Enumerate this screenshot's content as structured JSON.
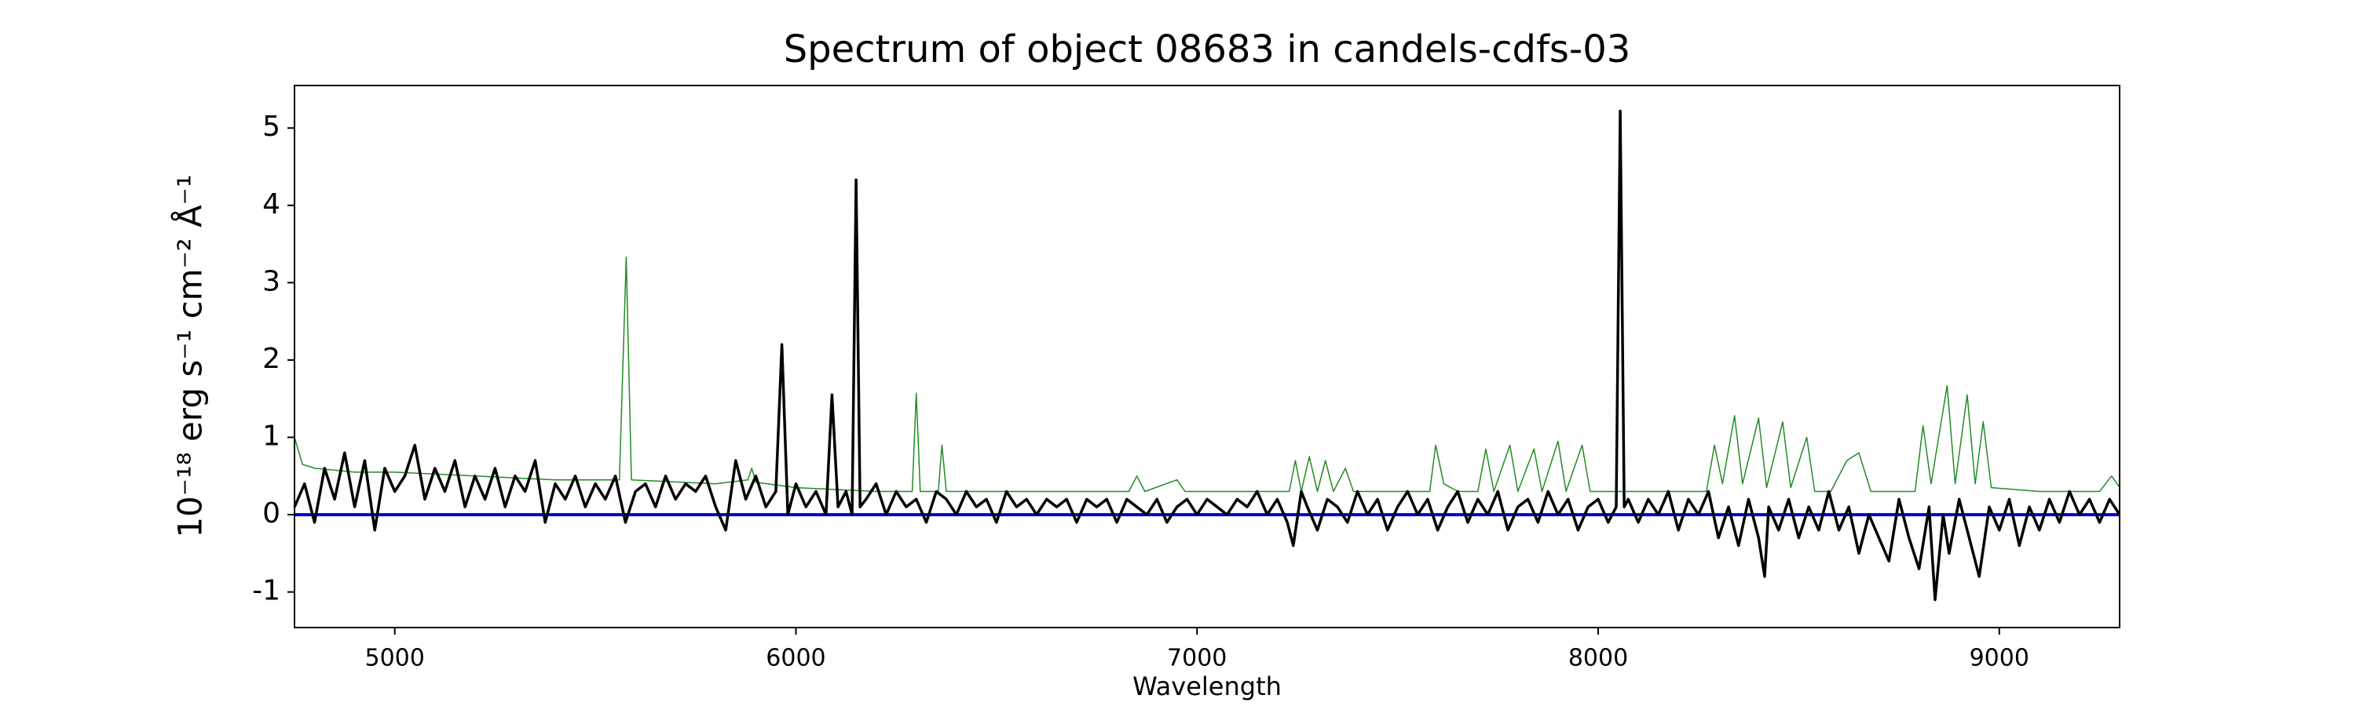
{
  "chart_data": {
    "type": "line",
    "title": "Spectrum of object 08683 in candels-cdfs-03",
    "xlabel": "Wavelength",
    "ylabel": "10⁻¹⁸ erg s⁻¹ cm⁻² Å⁻¹",
    "xlim": [
      4750,
      9300
    ],
    "ylim": [
      -1.46,
      5.55
    ],
    "xticks": [
      5000,
      6000,
      7000,
      8000,
      9000
    ],
    "yticks": [
      -1,
      0,
      1,
      2,
      3,
      4,
      5
    ],
    "grid": false,
    "series": [
      {
        "color": "#0000cc",
        "x": [
          4750,
          9300
        ],
        "values": [
          0,
          0
        ]
      },
      {
        "color": "#228b22",
        "x": [
          4750,
          4770,
          4800,
          4900,
          5000,
          5200,
          5400,
          5560,
          5577,
          5590,
          5800,
          5880,
          5890,
          5900,
          6000,
          6200,
          6290,
          6300,
          6310,
          6355,
          6364,
          6375,
          6500,
          6700,
          6830,
          6850,
          6870,
          6950,
          6970,
          7100,
          7230,
          7245,
          7260,
          7280,
          7300,
          7320,
          7340,
          7370,
          7390,
          7500,
          7580,
          7595,
          7615,
          7650,
          7700,
          7720,
          7740,
          7780,
          7800,
          7840,
          7860,
          7900,
          7920,
          7960,
          7980,
          8100,
          8270,
          8290,
          8310,
          8340,
          8360,
          8400,
          8420,
          8460,
          8480,
          8520,
          8540,
          8580,
          8620,
          8650,
          8680,
          8790,
          8810,
          8830,
          8870,
          8890,
          8920,
          8940,
          8960,
          8980,
          9100,
          9250,
          9280,
          9300
        ],
        "values": [
          1.0,
          0.65,
          0.6,
          0.55,
          0.55,
          0.5,
          0.45,
          0.45,
          3.33,
          0.45,
          0.4,
          0.45,
          0.6,
          0.42,
          0.35,
          0.3,
          0.3,
          1.57,
          0.3,
          0.3,
          0.9,
          0.3,
          0.3,
          0.3,
          0.3,
          0.5,
          0.3,
          0.45,
          0.3,
          0.3,
          0.3,
          0.7,
          0.3,
          0.75,
          0.3,
          0.7,
          0.3,
          0.6,
          0.3,
          0.3,
          0.3,
          0.9,
          0.4,
          0.3,
          0.3,
          0.85,
          0.3,
          0.9,
          0.3,
          0.85,
          0.3,
          0.95,
          0.3,
          0.9,
          0.3,
          0.3,
          0.3,
          0.9,
          0.4,
          1.28,
          0.4,
          1.25,
          0.35,
          1.2,
          0.35,
          1.0,
          0.3,
          0.3,
          0.7,
          0.8,
          0.3,
          0.3,
          1.15,
          0.4,
          1.67,
          0.4,
          1.55,
          0.4,
          1.2,
          0.35,
          0.3,
          0.3,
          0.5,
          0.35
        ]
      },
      {
        "color": "#000000",
        "x": [
          4750,
          4775,
          4800,
          4825,
          4850,
          4875,
          4900,
          4925,
          4950,
          4975,
          5000,
          5025,
          5050,
          5075,
          5100,
          5125,
          5150,
          5175,
          5200,
          5225,
          5250,
          5275,
          5300,
          5325,
          5350,
          5375,
          5400,
          5425,
          5450,
          5475,
          5500,
          5525,
          5550,
          5575,
          5600,
          5625,
          5650,
          5675,
          5700,
          5725,
          5750,
          5775,
          5800,
          5825,
          5850,
          5875,
          5900,
          5925,
          5950,
          5965,
          5980,
          6000,
          6025,
          6050,
          6075,
          6090,
          6105,
          6125,
          6140,
          6150,
          6160,
          6175,
          6200,
          6225,
          6250,
          6275,
          6300,
          6325,
          6350,
          6375,
          6400,
          6425,
          6450,
          6475,
          6500,
          6525,
          6550,
          6575,
          6600,
          6625,
          6650,
          6675,
          6700,
          6725,
          6750,
          6775,
          6800,
          6825,
          6850,
          6875,
          6900,
          6925,
          6950,
          6975,
          7000,
          7025,
          7050,
          7075,
          7100,
          7125,
          7150,
          7175,
          7200,
          7225,
          7240,
          7260,
          7275,
          7300,
          7325,
          7350,
          7375,
          7400,
          7425,
          7450,
          7475,
          7500,
          7525,
          7550,
          7575,
          7600,
          7625,
          7650,
          7675,
          7700,
          7725,
          7750,
          7775,
          7800,
          7825,
          7850,
          7875,
          7900,
          7925,
          7950,
          7975,
          8000,
          8025,
          8045,
          8055,
          8065,
          8075,
          8100,
          8125,
          8150,
          8175,
          8200,
          8225,
          8250,
          8275,
          8300,
          8325,
          8350,
          8375,
          8400,
          8415,
          8425,
          8450,
          8475,
          8500,
          8525,
          8550,
          8575,
          8600,
          8625,
          8650,
          8675,
          8700,
          8725,
          8750,
          8775,
          8800,
          8825,
          8840,
          8860,
          8875,
          8900,
          8925,
          8950,
          8975,
          9000,
          9025,
          9050,
          9075,
          9100,
          9125,
          9150,
          9175,
          9200,
          9225,
          9250,
          9275,
          9300
        ],
        "values": [
          0.1,
          0.4,
          -0.1,
          0.6,
          0.2,
          0.8,
          0.1,
          0.7,
          -0.2,
          0.6,
          0.3,
          0.5,
          0.9,
          0.2,
          0.6,
          0.3,
          0.7,
          0.1,
          0.5,
          0.2,
          0.6,
          0.1,
          0.5,
          0.3,
          0.7,
          -0.1,
          0.4,
          0.2,
          0.5,
          0.1,
          0.4,
          0.2,
          0.5,
          -0.1,
          0.3,
          0.4,
          0.1,
          0.5,
          0.2,
          0.4,
          0.3,
          0.5,
          0.1,
          -0.2,
          0.7,
          0.2,
          0.5,
          0.1,
          0.3,
          2.2,
          0.0,
          0.4,
          0.1,
          0.3,
          0.0,
          1.55,
          0.1,
          0.3,
          0.0,
          4.33,
          0.1,
          0.2,
          0.4,
          0.0,
          0.3,
          0.1,
          0.2,
          -0.1,
          0.3,
          0.2,
          0.0,
          0.3,
          0.1,
          0.2,
          -0.1,
          0.3,
          0.1,
          0.2,
          0.0,
          0.2,
          0.1,
          0.2,
          -0.1,
          0.2,
          0.1,
          0.2,
          -0.1,
          0.2,
          0.1,
          0.0,
          0.2,
          -0.1,
          0.1,
          0.2,
          0.0,
          0.2,
          0.1,
          0.0,
          0.2,
          0.1,
          0.3,
          0.0,
          0.2,
          -0.1,
          -0.4,
          0.3,
          0.1,
          -0.2,
          0.2,
          0.1,
          -0.1,
          0.3,
          0.0,
          0.2,
          -0.2,
          0.1,
          0.3,
          0.0,
          0.2,
          -0.2,
          0.1,
          0.3,
          -0.1,
          0.2,
          0.0,
          0.3,
          -0.2,
          0.1,
          0.2,
          -0.1,
          0.3,
          0.0,
          0.2,
          -0.2,
          0.1,
          0.2,
          -0.1,
          0.1,
          5.22,
          0.1,
          0.2,
          -0.1,
          0.2,
          0.0,
          0.3,
          -0.2,
          0.2,
          0.0,
          0.3,
          -0.3,
          0.1,
          -0.4,
          0.2,
          -0.3,
          -0.8,
          0.1,
          -0.2,
          0.2,
          -0.3,
          0.1,
          -0.2,
          0.3,
          -0.2,
          0.1,
          -0.5,
          0.0,
          -0.3,
          -0.6,
          0.2,
          -0.3,
          -0.7,
          0.1,
          -1.1,
          0.0,
          -0.5,
          0.2,
          -0.3,
          -0.8,
          0.1,
          -0.2,
          0.2,
          -0.4,
          0.1,
          -0.2,
          0.2,
          -0.1,
          0.3,
          0.0,
          0.2,
          -0.1,
          0.2,
          0.0
        ]
      }
    ]
  }
}
